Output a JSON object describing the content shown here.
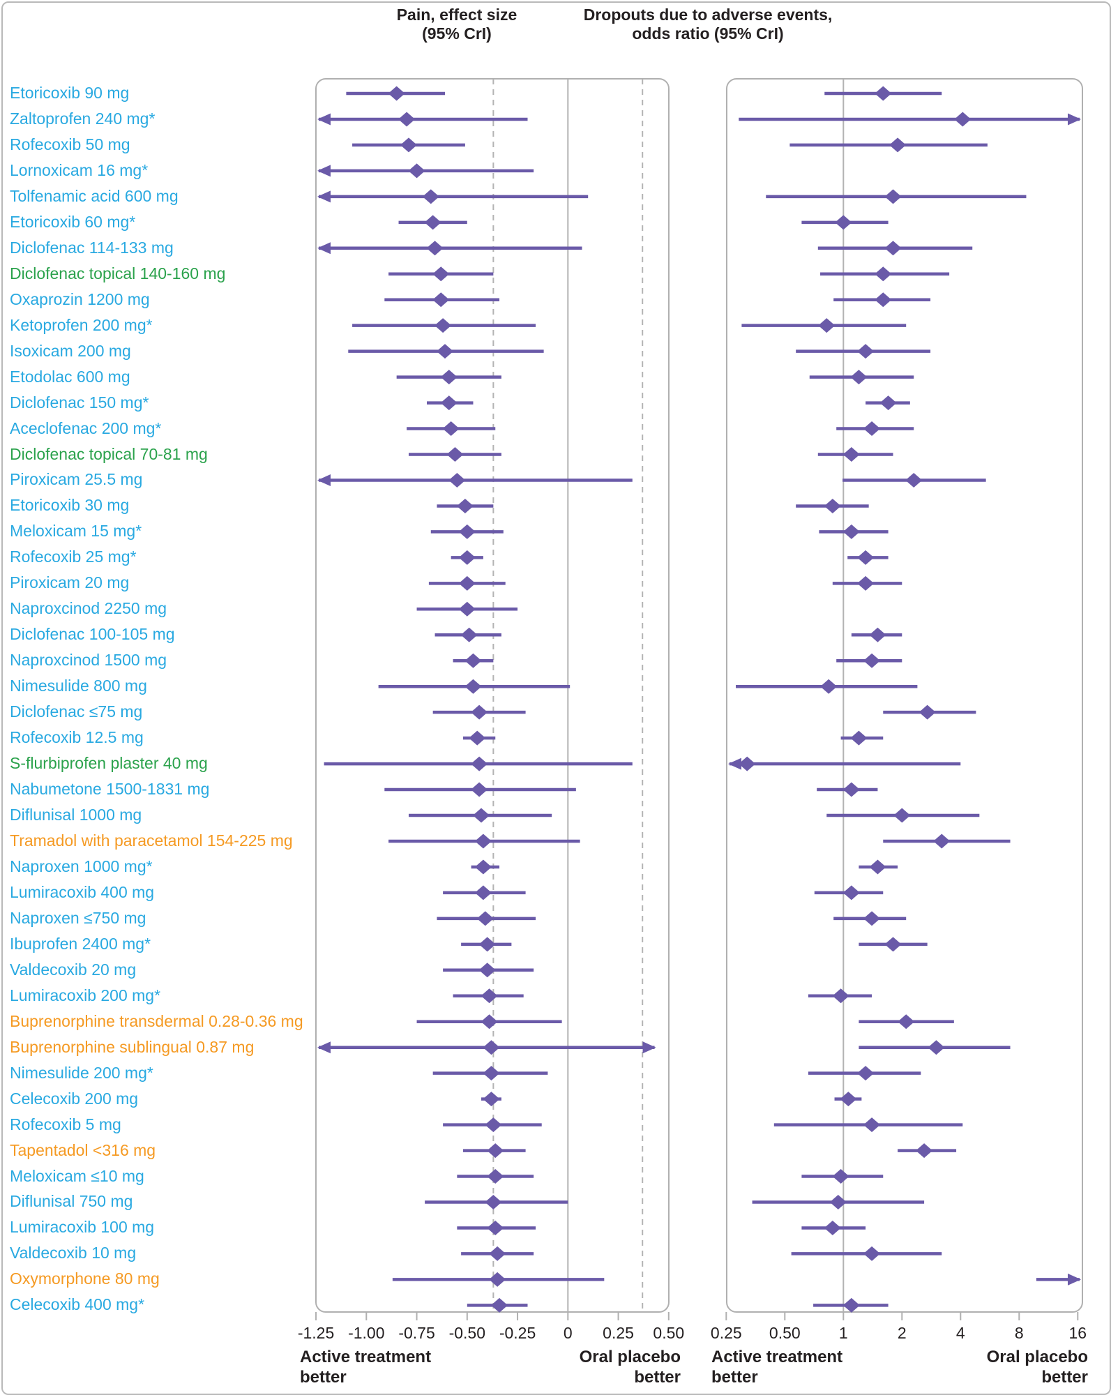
{
  "header": {
    "panel1_title_line1": "Pain, effect size",
    "panel1_title_line2": "(95% CrI)",
    "panel2_title_line1": "Dropouts due to adverse events,",
    "panel2_title_line2": "odds ratio (95% CrI)"
  },
  "footers": {
    "panel1_left": [
      "Active treatment",
      "better"
    ],
    "panel1_right": [
      "Oral placebo",
      "better"
    ],
    "panel2_left": [
      "Active treatment",
      "better"
    ],
    "panel2_right": [
      "Oral placebo",
      "better"
    ]
  },
  "colors": {
    "nsaid_oral": "#29a9e1",
    "nsaid_topical": "#2ba24c",
    "opioid": "#f59a23",
    "marker": "#6a5aa8",
    "grid": "#b3b3b3",
    "panel_border": "#b0b0b0",
    "text": "#231f20"
  },
  "chart_data": {
    "type": "forest",
    "panels": [
      {
        "id": "pain",
        "title": "Pain, effect size (95% CrI)",
        "scale": "linear",
        "xlim": [
          -1.25,
          0.5
        ],
        "ticks": [
          -1.25,
          -1.0,
          -0.75,
          -0.5,
          -0.25,
          0,
          0.25,
          0.5
        ],
        "tick_labels": [
          "-1.25",
          "-1.00",
          "-0.75",
          "-0.50",
          "-0.25",
          "0",
          "0.25",
          "0.50"
        ],
        "reference_line": 0,
        "dashed_lines": [
          -0.37,
          0.37
        ],
        "grid": "off",
        "legend": "none"
      },
      {
        "id": "dropouts",
        "title": "Dropouts due to adverse events, odds ratio (95% CrI)",
        "scale": "log2",
        "xlim": [
          0.25,
          16
        ],
        "ticks": [
          0.25,
          0.5,
          1,
          2,
          4,
          8,
          16
        ],
        "tick_labels": [
          "0.25",
          "0.50",
          "1",
          "2",
          "4",
          "8",
          "16"
        ],
        "reference_line": 1,
        "dashed_lines": [],
        "grid": "off",
        "legend": "none"
      }
    ],
    "rows": [
      {
        "label": "Etoricoxib 90 mg",
        "group": "nsaid_oral",
        "pain": {
          "est": -0.85,
          "lo": -1.1,
          "hi": -0.61
        },
        "dropouts": {
          "est": 1.6,
          "lo": 0.8,
          "hi": 3.2
        }
      },
      {
        "label": "Zaltoprofen 240 mg*",
        "group": "nsaid_oral",
        "pain": {
          "est": -0.8,
          "lo": -1.3,
          "hi": -0.2,
          "arrow_lo": true
        },
        "dropouts": {
          "est": 4.1,
          "lo": 0.29,
          "hi": 18,
          "arrow_hi": true
        }
      },
      {
        "label": "Rofecoxib 50 mg",
        "group": "nsaid_oral",
        "pain": {
          "est": -0.79,
          "lo": -1.07,
          "hi": -0.51
        },
        "dropouts": {
          "est": 1.9,
          "lo": 0.53,
          "hi": 5.5
        }
      },
      {
        "label": "Lornoxicam 16 mg*",
        "group": "nsaid_oral",
        "pain": {
          "est": -0.75,
          "lo": -1.3,
          "hi": -0.17,
          "arrow_lo": true
        },
        "dropouts": null
      },
      {
        "label": "Tolfenamic acid 600 mg",
        "group": "nsaid_oral",
        "pain": {
          "est": -0.68,
          "lo": -1.3,
          "hi": 0.1,
          "arrow_lo": true
        },
        "dropouts": {
          "est": 1.8,
          "lo": 0.4,
          "hi": 8.7
        }
      },
      {
        "label": "Etoricoxib 60 mg*",
        "group": "nsaid_oral",
        "pain": {
          "est": -0.67,
          "lo": -0.84,
          "hi": -0.5
        },
        "dropouts": {
          "est": 1.0,
          "lo": 0.61,
          "hi": 1.7
        }
      },
      {
        "label": "Diclofenac 114-133 mg",
        "group": "nsaid_oral",
        "pain": {
          "est": -0.66,
          "lo": -1.3,
          "hi": 0.07,
          "arrow_lo": true
        },
        "dropouts": {
          "est": 1.8,
          "lo": 0.74,
          "hi": 4.6
        }
      },
      {
        "label": "Diclofenac topical 140-160 mg",
        "group": "nsaid_topical",
        "pain": {
          "est": -0.63,
          "lo": -0.89,
          "hi": -0.37
        },
        "dropouts": {
          "est": 1.6,
          "lo": 0.76,
          "hi": 3.5
        }
      },
      {
        "label": "Oxaprozin 1200 mg",
        "group": "nsaid_oral",
        "pain": {
          "est": -0.63,
          "lo": -0.91,
          "hi": -0.34
        },
        "dropouts": {
          "est": 1.6,
          "lo": 0.89,
          "hi": 2.8
        }
      },
      {
        "label": "Ketoprofen 200 mg*",
        "group": "nsaid_oral",
        "pain": {
          "est": -0.62,
          "lo": -1.07,
          "hi": -0.16
        },
        "dropouts": {
          "est": 0.82,
          "lo": 0.3,
          "hi": 2.1
        }
      },
      {
        "label": "Isoxicam 200 mg",
        "group": "nsaid_oral",
        "pain": {
          "est": -0.61,
          "lo": -1.09,
          "hi": -0.12
        },
        "dropouts": {
          "est": 1.3,
          "lo": 0.57,
          "hi": 2.8
        }
      },
      {
        "label": "Etodolac 600 mg",
        "group": "nsaid_oral",
        "pain": {
          "est": -0.59,
          "lo": -0.85,
          "hi": -0.33
        },
        "dropouts": {
          "est": 1.2,
          "lo": 0.67,
          "hi": 2.3
        }
      },
      {
        "label": "Diclofenac 150 mg*",
        "group": "nsaid_oral",
        "pain": {
          "est": -0.59,
          "lo": -0.7,
          "hi": -0.47
        },
        "dropouts": {
          "est": 1.7,
          "lo": 1.3,
          "hi": 2.2
        }
      },
      {
        "label": "Aceclofenac 200 mg*",
        "group": "nsaid_oral",
        "pain": {
          "est": -0.58,
          "lo": -0.8,
          "hi": -0.36
        },
        "dropouts": {
          "est": 1.4,
          "lo": 0.92,
          "hi": 2.3
        }
      },
      {
        "label": "Diclofenac topical 70-81 mg",
        "group": "nsaid_topical",
        "pain": {
          "est": -0.56,
          "lo": -0.79,
          "hi": -0.33
        },
        "dropouts": {
          "est": 1.1,
          "lo": 0.74,
          "hi": 1.8
        }
      },
      {
        "label": "Piroxicam 25.5 mg",
        "group": "nsaid_oral",
        "pain": {
          "est": -0.55,
          "lo": -1.3,
          "hi": 0.32,
          "arrow_lo": true
        },
        "dropouts": {
          "est": 2.3,
          "lo": 0.99,
          "hi": 5.4
        }
      },
      {
        "label": "Etoricoxib 30 mg",
        "group": "nsaid_oral",
        "pain": {
          "est": -0.51,
          "lo": -0.65,
          "hi": -0.37
        },
        "dropouts": {
          "est": 0.88,
          "lo": 0.57,
          "hi": 1.35
        }
      },
      {
        "label": "Meloxicam 15 mg*",
        "group": "nsaid_oral",
        "pain": {
          "est": -0.5,
          "lo": -0.68,
          "hi": -0.32
        },
        "dropouts": {
          "est": 1.1,
          "lo": 0.75,
          "hi": 1.7
        }
      },
      {
        "label": "Rofecoxib 25 mg*",
        "group": "nsaid_oral",
        "pain": {
          "est": -0.5,
          "lo": -0.58,
          "hi": -0.42
        },
        "dropouts": {
          "est": 1.3,
          "lo": 1.05,
          "hi": 1.7
        }
      },
      {
        "label": "Piroxicam 20 mg",
        "group": "nsaid_oral",
        "pain": {
          "est": -0.5,
          "lo": -0.69,
          "hi": -0.31
        },
        "dropouts": {
          "est": 1.3,
          "lo": 0.88,
          "hi": 2.0
        }
      },
      {
        "label": "Naproxcinod 2250 mg",
        "group": "nsaid_oral",
        "pain": {
          "est": -0.5,
          "lo": -0.75,
          "hi": -0.25
        },
        "dropouts": null
      },
      {
        "label": "Diclofenac 100-105 mg",
        "group": "nsaid_oral",
        "pain": {
          "est": -0.49,
          "lo": -0.66,
          "hi": -0.33
        },
        "dropouts": {
          "est": 1.5,
          "lo": 1.1,
          "hi": 2.0
        }
      },
      {
        "label": "Naproxcinod 1500 mg",
        "group": "nsaid_oral",
        "pain": {
          "est": -0.47,
          "lo": -0.57,
          "hi": -0.37
        },
        "dropouts": {
          "est": 1.4,
          "lo": 0.92,
          "hi": 2.0
        }
      },
      {
        "label": "Nimesulide 800 mg",
        "group": "nsaid_oral",
        "pain": {
          "est": -0.47,
          "lo": -0.94,
          "hi": 0.01
        },
        "dropouts": {
          "est": 0.84,
          "lo": 0.28,
          "hi": 2.4
        }
      },
      {
        "label": "Diclofenac ≤75 mg",
        "group": "nsaid_oral",
        "pain": {
          "est": -0.44,
          "lo": -0.67,
          "hi": -0.21
        },
        "dropouts": {
          "est": 2.7,
          "lo": 1.6,
          "hi": 4.8
        }
      },
      {
        "label": "Rofecoxib 12.5 mg",
        "group": "nsaid_oral",
        "pain": {
          "est": -0.45,
          "lo": -0.52,
          "hi": -0.36
        },
        "dropouts": {
          "est": 1.2,
          "lo": 0.97,
          "hi": 1.6
        }
      },
      {
        "label": "S-flurbiprofen plaster 40 mg",
        "group": "nsaid_topical",
        "pain": {
          "est": -0.44,
          "lo": -1.21,
          "hi": 0.32
        },
        "dropouts": {
          "est": 0.32,
          "lo": 0.23,
          "hi": 4.0,
          "arrow_lo": true
        }
      },
      {
        "label": "Nabumetone 1500-1831 mg",
        "group": "nsaid_oral",
        "pain": {
          "est": -0.44,
          "lo": -0.91,
          "hi": 0.04
        },
        "dropouts": {
          "est": 1.1,
          "lo": 0.73,
          "hi": 1.5
        }
      },
      {
        "label": "Diflunisal 1000 mg",
        "group": "nsaid_oral",
        "pain": {
          "est": -0.43,
          "lo": -0.79,
          "hi": -0.08
        },
        "dropouts": {
          "est": 2.0,
          "lo": 0.82,
          "hi": 5.0
        }
      },
      {
        "label": "Tramadol with paracetamol 154-225 mg",
        "group": "opioid",
        "pain": {
          "est": -0.42,
          "lo": -0.89,
          "hi": 0.06
        },
        "dropouts": {
          "est": 3.2,
          "lo": 1.6,
          "hi": 7.2
        }
      },
      {
        "label": "Naproxen 1000 mg*",
        "group": "nsaid_oral",
        "pain": {
          "est": -0.42,
          "lo": -0.48,
          "hi": -0.34
        },
        "dropouts": {
          "est": 1.5,
          "lo": 1.2,
          "hi": 1.9
        }
      },
      {
        "label": "Lumiracoxib 400 mg",
        "group": "nsaid_oral",
        "pain": {
          "est": -0.42,
          "lo": -0.62,
          "hi": -0.21
        },
        "dropouts": {
          "est": 1.1,
          "lo": 0.71,
          "hi": 1.6
        }
      },
      {
        "label": "Naproxen ≤750 mg",
        "group": "nsaid_oral",
        "pain": {
          "est": -0.41,
          "lo": -0.65,
          "hi": -0.16
        },
        "dropouts": {
          "est": 1.4,
          "lo": 0.89,
          "hi": 2.1
        }
      },
      {
        "label": "Ibuprofen 2400 mg*",
        "group": "nsaid_oral",
        "pain": {
          "est": -0.4,
          "lo": -0.53,
          "hi": -0.28
        },
        "dropouts": {
          "est": 1.8,
          "lo": 1.2,
          "hi": 2.7
        }
      },
      {
        "label": "Valdecoxib 20 mg",
        "group": "nsaid_oral",
        "pain": {
          "est": -0.4,
          "lo": -0.62,
          "hi": -0.17
        },
        "dropouts": null
      },
      {
        "label": "Lumiracoxib 200 mg*",
        "group": "nsaid_oral",
        "pain": {
          "est": -0.39,
          "lo": -0.57,
          "hi": -0.22
        },
        "dropouts": {
          "est": 0.97,
          "lo": 0.66,
          "hi": 1.4
        }
      },
      {
        "label": "Buprenorphine transdermal 0.28-0.36 mg",
        "group": "opioid",
        "pain": {
          "est": -0.39,
          "lo": -0.75,
          "hi": -0.03
        },
        "dropouts": {
          "est": 2.1,
          "lo": 1.2,
          "hi": 3.7
        }
      },
      {
        "label": "Buprenorphine sublingual 0.87 mg",
        "group": "opioid",
        "pain": {
          "est": -0.38,
          "lo": -1.3,
          "hi": 0.43,
          "arrow_lo": true,
          "arrow_hi": true
        },
        "dropouts": {
          "est": 3.0,
          "lo": 1.2,
          "hi": 7.2
        }
      },
      {
        "label": "Nimesulide 200 mg*",
        "group": "nsaid_oral",
        "pain": {
          "est": -0.38,
          "lo": -0.67,
          "hi": -0.1
        },
        "dropouts": {
          "est": 1.3,
          "lo": 0.66,
          "hi": 2.5
        }
      },
      {
        "label": "Celecoxib 200 mg",
        "group": "nsaid_oral",
        "pain": {
          "est": -0.38,
          "lo": -0.43,
          "hi": -0.33
        },
        "dropouts": {
          "est": 1.06,
          "lo": 0.9,
          "hi": 1.24
        }
      },
      {
        "label": "Rofecoxib 5 mg",
        "group": "nsaid_oral",
        "pain": {
          "est": -0.37,
          "lo": -0.62,
          "hi": -0.13
        },
        "dropouts": {
          "est": 1.4,
          "lo": 0.44,
          "hi": 4.1
        }
      },
      {
        "label": "Tapentadol <316 mg",
        "group": "opioid",
        "pain": {
          "est": -0.36,
          "lo": -0.52,
          "hi": -0.21
        },
        "dropouts": {
          "est": 2.6,
          "lo": 1.9,
          "hi": 3.8
        }
      },
      {
        "label": "Meloxicam ≤10 mg",
        "group": "nsaid_oral",
        "pain": {
          "est": -0.36,
          "lo": -0.55,
          "hi": -0.17
        },
        "dropouts": {
          "est": 0.97,
          "lo": 0.61,
          "hi": 1.6
        }
      },
      {
        "label": "Diflunisal 750 mg",
        "group": "nsaid_oral",
        "pain": {
          "est": -0.37,
          "lo": -0.71,
          "hi": 0.0
        },
        "dropouts": {
          "est": 0.94,
          "lo": 0.34,
          "hi": 2.6
        }
      },
      {
        "label": "Lumiracoxib 100 mg",
        "group": "nsaid_oral",
        "pain": {
          "est": -0.36,
          "lo": -0.55,
          "hi": -0.16
        },
        "dropouts": {
          "est": 0.88,
          "lo": 0.61,
          "hi": 1.3
        }
      },
      {
        "label": "Valdecoxib 10 mg",
        "group": "nsaid_oral",
        "pain": {
          "est": -0.35,
          "lo": -0.53,
          "hi": -0.17
        },
        "dropouts": {
          "est": 1.4,
          "lo": 0.54,
          "hi": 3.2
        }
      },
      {
        "label": "Oxymorphone 80 mg",
        "group": "opioid",
        "pain": {
          "est": -0.35,
          "lo": -0.87,
          "hi": 0.18
        },
        "dropouts": {
          "est": null,
          "lo": 9.8,
          "hi": 18,
          "arrow_hi": true
        }
      },
      {
        "label": "Celecoxib 400 mg*",
        "group": "nsaid_oral",
        "pain": {
          "est": -0.34,
          "lo": -0.5,
          "hi": -0.2
        },
        "dropouts": {
          "est": 1.1,
          "lo": 0.7,
          "hi": 1.7
        }
      }
    ]
  }
}
